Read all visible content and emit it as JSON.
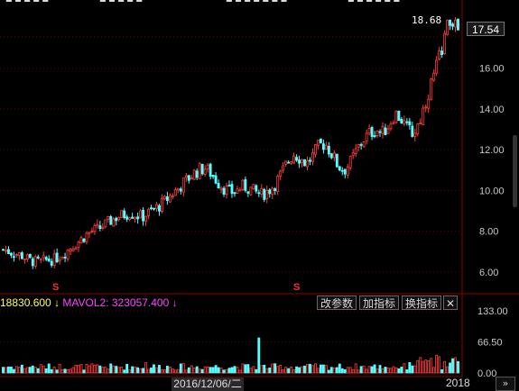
{
  "top_strip": [
    "■ ■ ■ ■ ■",
    "■ ■ ■ ■ ■",
    "■ ■ ■ ■ ■ ■ ■",
    "■ ■ ■ ■ ■ ■"
  ],
  "max_price_label": "18.68",
  "current_price": "17.54",
  "price_axis": [
    "16.00",
    "14.00",
    "12.00",
    "10.00",
    "8.00",
    "6.00"
  ],
  "volume_axis": [
    "133.00",
    "66.50",
    "0.00"
  ],
  "signal_marks": [
    "S",
    "S"
  ],
  "volume_legend": {
    "mavol1": "18830.600",
    "mavol1_arrow": "↓",
    "mavol2": "MAVOL2: 323057.400",
    "mavol2_arrow": "↓"
  },
  "buttons": {
    "params": "改参数",
    "add_indicator": "加指标",
    "swap_indicator": "换指标",
    "close": "✕"
  },
  "cursor_date": "2016/12/06/二",
  "year_label": "2018",
  "scroll_right": "»",
  "colors": {
    "up": "#ff3b3b",
    "down": "#54ffff",
    "grid": "#5a0000",
    "text": "#c8c8c8"
  },
  "chart_data": {
    "type": "candlestick",
    "price_ylim": [
      5.2,
      18.9
    ],
    "volume_ylim": [
      0,
      133
    ],
    "price_path": [
      7.1,
      7.0,
      6.9,
      6.8,
      6.6,
      6.5,
      6.5,
      6.6,
      6.6,
      6.8,
      7.0,
      7.3,
      7.5,
      7.8,
      8.0,
      8.1,
      8.3,
      8.5,
      8.7,
      8.8,
      8.9,
      8.8,
      8.7,
      8.9,
      9.1,
      9.3,
      9.6,
      9.9,
      10.2,
      10.5,
      10.8,
      11.0,
      11.1,
      10.8,
      10.4,
      10.1,
      9.9,
      10.0,
      10.2,
      10.1,
      9.9,
      9.8,
      10.0,
      10.3,
      10.8,
      11.4,
      11.8,
      11.6,
      11.3,
      11.7,
      12.2,
      12.3,
      11.8,
      11.2,
      11.0,
      11.4,
      12.0,
      12.5,
      12.8,
      13.0,
      12.8,
      13.2,
      13.8,
      13.5,
      13.0,
      12.8,
      13.5,
      14.5,
      15.5,
      16.5,
      17.8,
      18.4,
      17.8
    ]
  }
}
